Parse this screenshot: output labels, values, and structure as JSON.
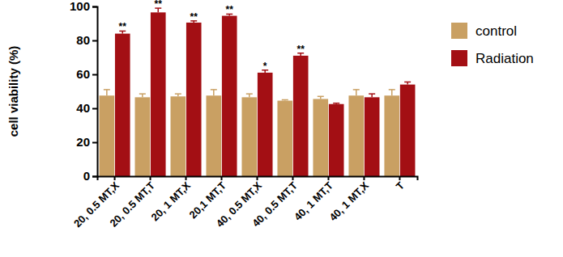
{
  "chart_data": {
    "type": "bar",
    "y_label": "cell viability (%)",
    "categories": [
      "20, 0.5 MT,X",
      "20, 0.5 MT,T",
      "20, 1 MT,X",
      "20,1 MT,T",
      "40, 0.5 MT,X",
      "40, 0.5 MT,T",
      "40, 1 MT,T",
      "40, 1 MT,X",
      "T"
    ],
    "series": [
      {
        "name": "control",
        "color": "#c9a063",
        "values": [
          47.5,
          46.5,
          47,
          47.5,
          46.5,
          44.5,
          45.5,
          47.5,
          47.5
        ],
        "errors": [
          3.5,
          2,
          1.5,
          3.5,
          2,
          0.5,
          1.5,
          3.5,
          3.5
        ]
      },
      {
        "name": "Radiation",
        "color": "#a30f14",
        "values": [
          84,
          96.5,
          90.5,
          94.5,
          61,
          71,
          42.5,
          46.5,
          54
        ],
        "errors": [
          1.5,
          2.5,
          1,
          1,
          1.5,
          1.5,
          0.5,
          2,
          1.5
        ],
        "significance": [
          "**",
          "**",
          "**",
          "**",
          "*",
          "**",
          null,
          null,
          null
        ]
      }
    ],
    "ylim": [
      0,
      100
    ],
    "yticks": [
      0,
      20,
      40,
      60,
      80,
      100
    ],
    "grid": false,
    "legend": "right"
  }
}
